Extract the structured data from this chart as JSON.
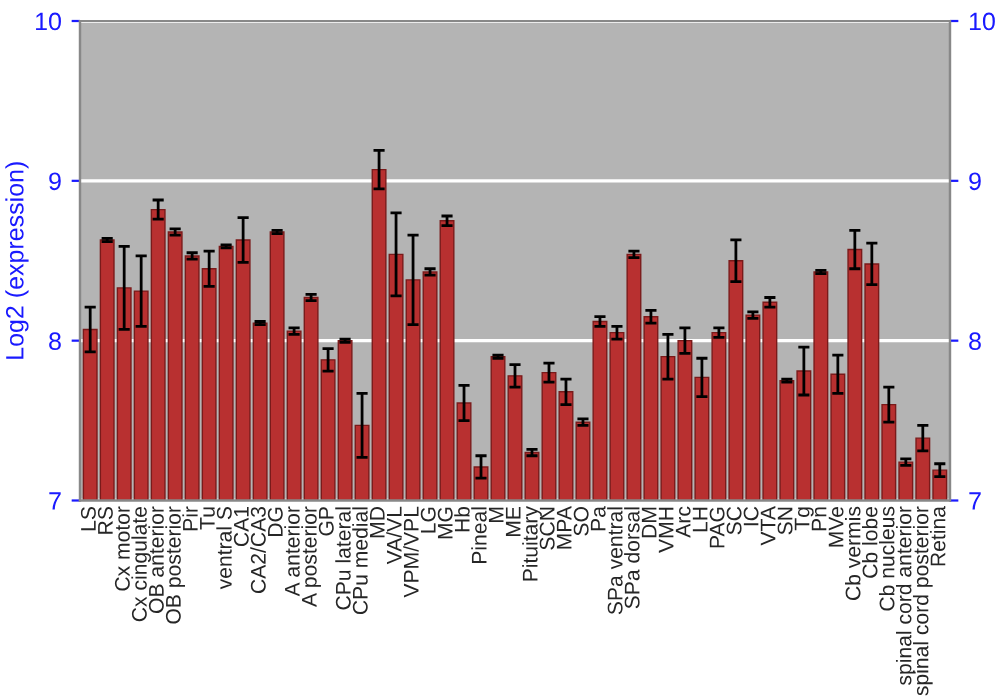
{
  "chart_data": {
    "type": "bar",
    "ylabel": "Log2 (expression)",
    "categories": [
      "LS",
      "RS",
      "Cx motor",
      "Cx cingulate",
      "OB anterior",
      "OB posterior",
      "Pir",
      "Tu",
      "ventral S",
      "CA1",
      "CA2/CA3",
      "DG",
      "A anterior",
      "A posterior",
      "GP",
      "CPu lateral",
      "CPu medial",
      "MD",
      "VA/VL",
      "VPM/VPL",
      "LG",
      "MG",
      "Hb",
      "Pineal",
      "M",
      "ME",
      "Pituitary",
      "SCN",
      "MPA",
      "SO",
      "Pa",
      "SPa ventral",
      "SPa dorsal",
      "DM",
      "VMH",
      "Arc",
      "LH",
      "PAG",
      "SC",
      "IC",
      "VTA",
      "SN",
      "Tg",
      "Pn",
      "MVe",
      "Cb vermis",
      "Cb lobe",
      "Cb nucleus",
      "spinal cord anterior",
      "spinal cord posterior",
      "Retina"
    ],
    "values": [
      8.07,
      8.63,
      8.33,
      8.31,
      8.82,
      8.68,
      8.53,
      8.45,
      8.59,
      8.63,
      8.11,
      8.68,
      8.06,
      8.27,
      7.88,
      8.0,
      7.47,
      9.07,
      8.54,
      8.38,
      8.43,
      8.75,
      7.61,
      7.21,
      7.9,
      7.78,
      7.3,
      7.8,
      7.68,
      7.49,
      8.12,
      8.05,
      8.54,
      8.15,
      7.9,
      8.0,
      7.77,
      8.05,
      8.5,
      8.16,
      8.24,
      7.75,
      7.81,
      8.43,
      7.79,
      8.57,
      8.48,
      7.6,
      7.24,
      7.39,
      7.19
    ],
    "errors": [
      0.14,
      0.01,
      0.26,
      0.22,
      0.06,
      0.02,
      0.02,
      0.11,
      0.01,
      0.14,
      0.01,
      0.01,
      0.02,
      0.02,
      0.07,
      0.01,
      0.2,
      0.12,
      0.26,
      0.28,
      0.02,
      0.03,
      0.11,
      0.07,
      0.01,
      0.07,
      0.02,
      0.06,
      0.08,
      0.02,
      0.03,
      0.04,
      0.02,
      0.04,
      0.14,
      0.08,
      0.12,
      0.03,
      0.13,
      0.02,
      0.03,
      0.01,
      0.15,
      0.01,
      0.12,
      0.12,
      0.13,
      0.11,
      0.02,
      0.08,
      0.04
    ],
    "color": "#b83030",
    "ylim": [
      7,
      10
    ],
    "yticks": [
      7,
      8,
      9,
      10
    ],
    "y2lim": [
      7,
      10
    ],
    "y2ticks": [
      7,
      8,
      9,
      10
    ],
    "grid": "y"
  }
}
